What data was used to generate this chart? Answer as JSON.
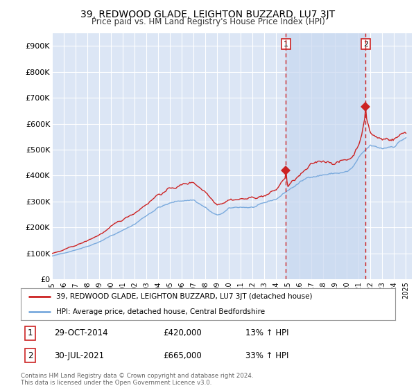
{
  "title": "39, REDWOOD GLADE, LEIGHTON BUZZARD, LU7 3JT",
  "subtitle": "Price paid vs. HM Land Registry's House Price Index (HPI)",
  "background_color": "#ffffff",
  "plot_bg_color": "#dce6f5",
  "grid_color": "#ffffff",
  "shade_color": "#c8d8f0",
  "ylim": [
    0,
    950000
  ],
  "yticks": [
    0,
    100000,
    200000,
    300000,
    400000,
    500000,
    600000,
    700000,
    800000,
    900000
  ],
  "ytick_labels": [
    "£0",
    "£100K",
    "£200K",
    "£300K",
    "£400K",
    "£500K",
    "£600K",
    "£700K",
    "£800K",
    "£900K"
  ],
  "hpi_color": "#7aaadd",
  "price_color": "#cc2222",
  "sale1_year": 2014.83,
  "sale1_value": 420000,
  "sale2_year": 2021.58,
  "sale2_value": 665000,
  "sale1_label": "1",
  "sale2_label": "2",
  "legend_line1": "39, REDWOOD GLADE, LEIGHTON BUZZARD, LU7 3JT (detached house)",
  "legend_line2": "HPI: Average price, detached house, Central Bedfordshire",
  "table_row1_num": "1",
  "table_row1_date": "29-OCT-2014",
  "table_row1_price": "£420,000",
  "table_row1_hpi": "13% ↑ HPI",
  "table_row2_num": "2",
  "table_row2_date": "30-JUL-2021",
  "table_row2_price": "£665,000",
  "table_row2_hpi": "33% ↑ HPI",
  "footer": "Contains HM Land Registry data © Crown copyright and database right 2024.\nThis data is licensed under the Open Government Licence v3.0.",
  "xlim_start": 1995,
  "xlim_end": 2025.5
}
